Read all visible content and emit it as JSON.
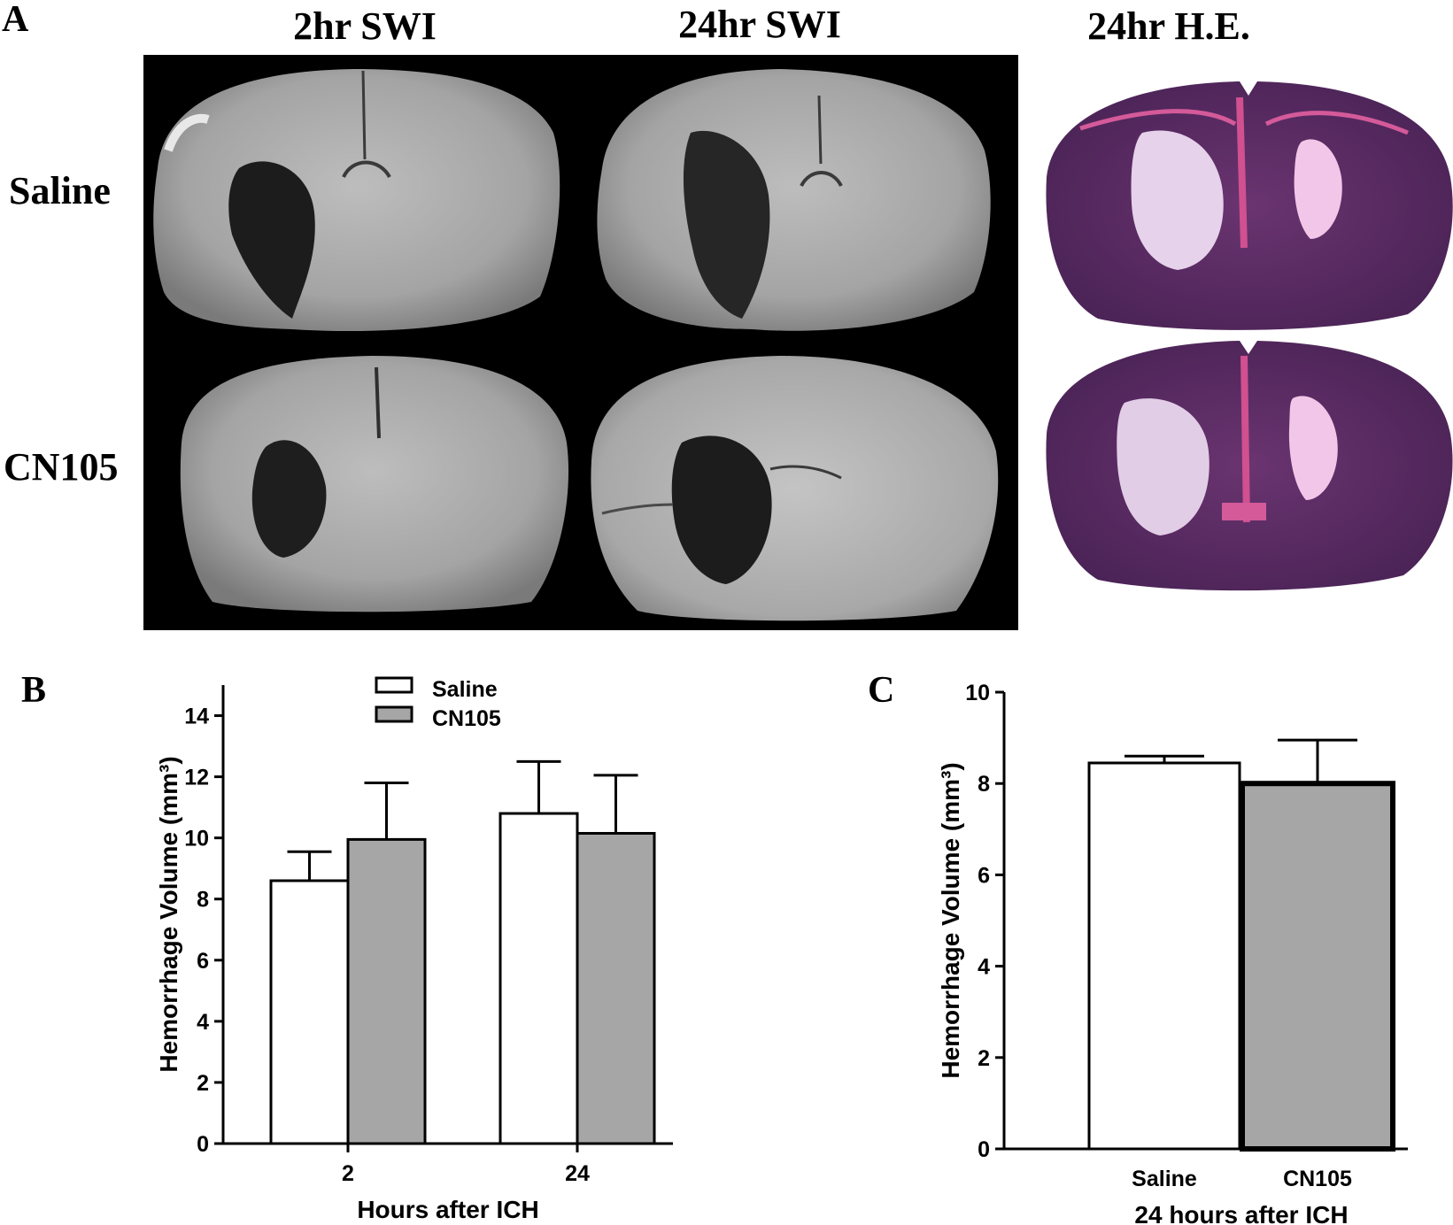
{
  "panelA": {
    "letter": "A",
    "columns": [
      "2hr SWI",
      "24hr SWI",
      "24hr H.E."
    ],
    "rows": [
      "Saline",
      "CN105"
    ]
  },
  "chart_data": [
    {
      "panel": "B",
      "type": "bar",
      "categories": [
        "2",
        "24"
      ],
      "series": [
        {
          "name": "Saline",
          "values": [
            8.6,
            10.8
          ],
          "errors": [
            0.95,
            1.7
          ],
          "color": "#ffffff"
        },
        {
          "name": "CN105",
          "values": [
            9.95,
            10.15
          ],
          "errors": [
            1.85,
            1.9
          ],
          "color": "#a6a6a6"
        }
      ],
      "xlabel": "Hours after ICH",
      "ylabel": "Hemorrhage Volume (mm³)",
      "ylim": [
        0,
        15
      ],
      "yticks": [
        0,
        2,
        4,
        6,
        8,
        10,
        12,
        14
      ],
      "grid": false,
      "legend": "top"
    },
    {
      "panel": "C",
      "type": "bar",
      "categories": [
        "Saline",
        "CN105"
      ],
      "values": [
        8.45,
        8.0
      ],
      "errors": [
        0.15,
        0.95
      ],
      "colors": [
        "#ffffff",
        "#a6a6a6"
      ],
      "xlabel": "24 hours after ICH",
      "ylabel": "Hemorrhage Volume (mm³)",
      "ylim": [
        0,
        10
      ],
      "yticks": [
        0,
        2,
        4,
        6,
        8,
        10
      ],
      "grid": false
    }
  ]
}
